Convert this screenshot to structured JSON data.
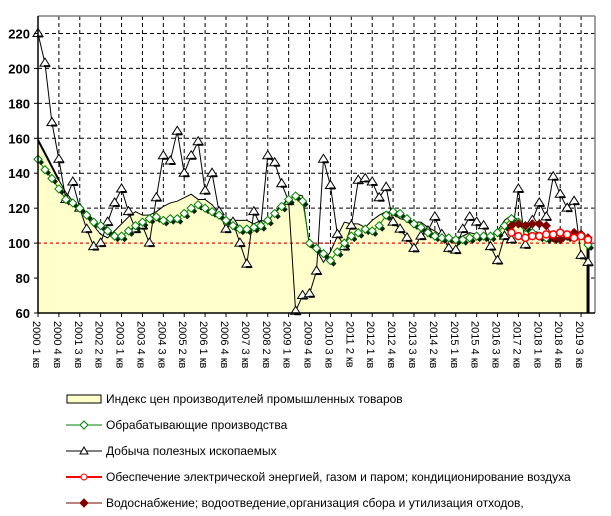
{
  "chart_data": {
    "type": "line",
    "title": "",
    "xlabel": "",
    "ylabel": "",
    "ylim": [
      60,
      230
    ],
    "yticks": [
      "60",
      "80",
      "100",
      "120",
      "140",
      "160",
      "180",
      "200",
      "220"
    ],
    "ytick_values": [
      60,
      80,
      100,
      120,
      140,
      160,
      180,
      200,
      220
    ],
    "reference_line": 100,
    "grid": true,
    "legend_position": "bottom",
    "xtick_labels": [
      "2000 1 кв",
      "2000 4 кв",
      "2001 3 кв",
      "2002 2 кв",
      "2003 1 кв",
      "2003 4 кв",
      "2004 3 кв",
      "2005 2 кв",
      "2006 1 кв",
      "2006 4 кв",
      "2007 3 кв",
      "2008 2 кв",
      "2009 1 кв",
      "2009 4 кв",
      "2010 3 кв",
      "2011 2 кв",
      "2012 1 кв",
      "2012 4 кв",
      "2013 3 кв",
      "2014 2 кв",
      "2015 1 кв",
      "2015 4 кв",
      "2016 3 кв",
      "2017 2 кв",
      "2018 1 кв",
      "2018 4 кв",
      "2019 3 кв"
    ],
    "n_quarters": 80,
    "series": [
      {
        "name": "Индекс цен производителей промышленных товаров",
        "kind": "area",
        "color": "#000000",
        "fill": "#ffffcc",
        "start_index": 0,
        "values": [
          159,
          152,
          144,
          136,
          129,
          124,
          120,
          115,
          110,
          105,
          103,
          107,
          111,
          115,
          118,
          116,
          116,
          118,
          121,
          123,
          124,
          126,
          128,
          125,
          125,
          122,
          117,
          114,
          113,
          113,
          113,
          111,
          113,
          112,
          118,
          121,
          124,
          128,
          127,
          98,
          96,
          89,
          95,
          104,
          112,
          111,
          111,
          109,
          113,
          116,
          118,
          117,
          114,
          113,
          112,
          112,
          109,
          107,
          104,
          103,
          103,
          104,
          106,
          105,
          104,
          104,
          107,
          113,
          116,
          113,
          110,
          107,
          106,
          104,
          103,
          104,
          103,
          104,
          106,
          103
        ]
      },
      {
        "name": "Обрабатывающие производства",
        "kind": "line",
        "color": "#008000",
        "marker": "diamond-hollow",
        "start_index": 0,
        "values": [
          148,
          142,
          137,
          131,
          125,
          123,
          120,
          116,
          112,
          110,
          107,
          104,
          104,
          107,
          110,
          112,
          114,
          115,
          113,
          114,
          114,
          117,
          120,
          122,
          120,
          118,
          116,
          113,
          110,
          108,
          108,
          109,
          110,
          113,
          117,
          121,
          125,
          127,
          124,
          100,
          97,
          94,
          90,
          95,
          100,
          104,
          106,
          108,
          107,
          110,
          116,
          118,
          117,
          114,
          111,
          109,
          106,
          104,
          103,
          103,
          102,
          102,
          103,
          104,
          104,
          104,
          106,
          110,
          114,
          112,
          109,
          106,
          104,
          103,
          103,
          104,
          104,
          105,
          105,
          99
        ]
      },
      {
        "name": "Добыча полезных ископаемых",
        "kind": "line",
        "color": "#000000",
        "marker": "triangle-hollow",
        "start_index": 0,
        "values": [
          220,
          203,
          169,
          148,
          125,
          135,
          120,
          108,
          98,
          100,
          112,
          123,
          131,
          118,
          108,
          110,
          100,
          126,
          150,
          147,
          164,
          140,
          150,
          158,
          130,
          140,
          118,
          108,
          112,
          100,
          88,
          118,
          110,
          150,
          146,
          134,
          124,
          61,
          70,
          71,
          84,
          148,
          133,
          105,
          98,
          110,
          136,
          137,
          135,
          126,
          132,
          112,
          108,
          103,
          97,
          104,
          107,
          115,
          105,
          97,
          96,
          108,
          115,
          112,
          110,
          98,
          90,
          104,
          102,
          131,
          99,
          113,
          123,
          115,
          138,
          128,
          120,
          124,
          93,
          89
        ]
      },
      {
        "name": "Обеспечение электрической энергией, газом и паром; кондиционирование воздуха",
        "kind": "line",
        "color": "#ff0000",
        "marker": "circle-hollow",
        "start_index": 68,
        "values": [
          106,
          104,
          103,
          104,
          104,
          105,
          105,
          106,
          105,
          103,
          104,
          102
        ]
      },
      {
        "name": "Водоснабжение; водоотведение,организация сбора и утилизация отходов,",
        "kind": "line",
        "color": "#800000",
        "marker": "diamond-filled",
        "start_index": 68,
        "values": [
          110,
          111,
          110,
          111,
          111,
          110,
          103,
          102,
          104,
          106,
          105,
          103
        ]
      }
    ]
  }
}
